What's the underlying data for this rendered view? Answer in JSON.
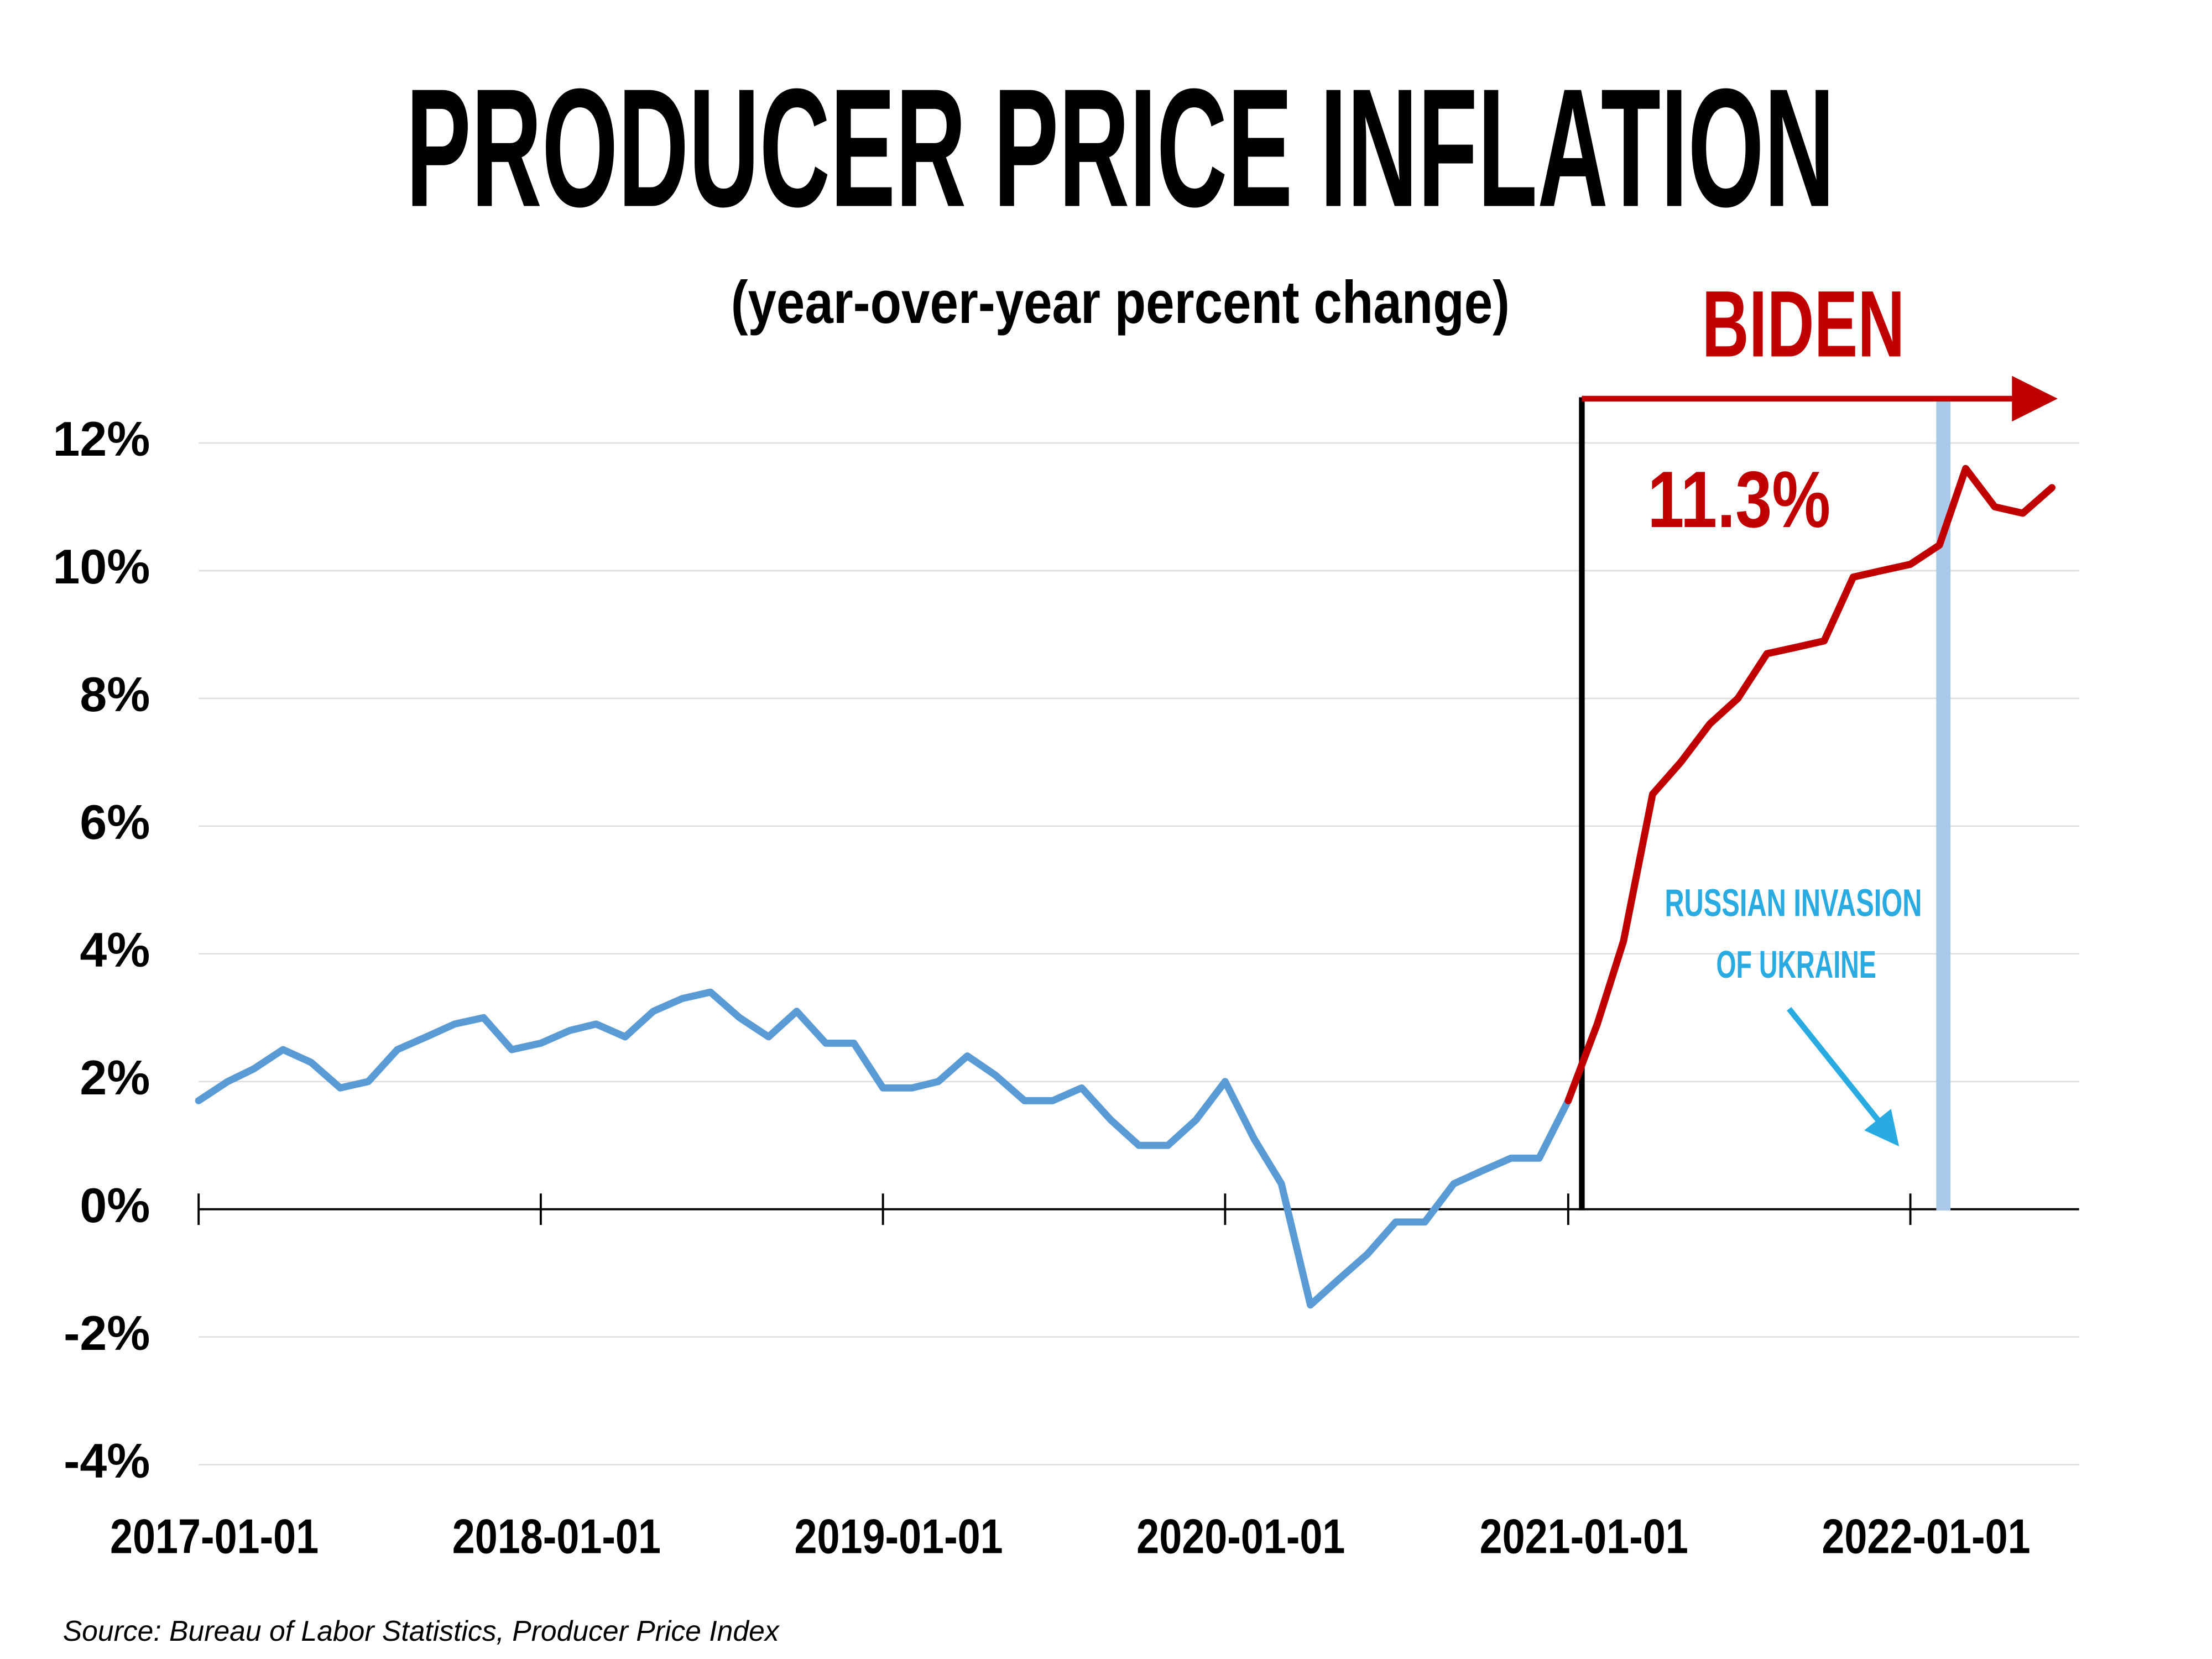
{
  "chart_data": {
    "type": "line",
    "title": "PRODUCER PRICE INFLATION",
    "subtitle": "(year-over-year percent change)",
    "annotations": {
      "president": "BIDEN",
      "latest": "11.3%",
      "event": [
        "RUSSIAN INVASION",
        "OF UKRAINE"
      ]
    },
    "source": "Source: Bureau of Labor Statistics, Producer Price Index",
    "x": [
      "2017-01-01",
      "2017-02-01",
      "2017-03-01",
      "2017-04-01",
      "2017-05-01",
      "2017-06-01",
      "2017-07-01",
      "2017-08-01",
      "2017-09-01",
      "2017-10-01",
      "2017-11-01",
      "2017-12-01",
      "2018-01-01",
      "2018-02-01",
      "2018-03-01",
      "2018-04-01",
      "2018-05-01",
      "2018-06-01",
      "2018-07-01",
      "2018-08-01",
      "2018-09-01",
      "2018-10-01",
      "2018-11-01",
      "2018-12-01",
      "2019-01-01",
      "2019-02-01",
      "2019-03-01",
      "2019-04-01",
      "2019-05-01",
      "2019-06-01",
      "2019-07-01",
      "2019-08-01",
      "2019-09-01",
      "2019-10-01",
      "2019-11-01",
      "2019-12-01",
      "2020-01-01",
      "2020-02-01",
      "2020-03-01",
      "2020-04-01",
      "2020-05-01",
      "2020-06-01",
      "2020-07-01",
      "2020-08-01",
      "2020-09-01",
      "2020-10-01",
      "2020-11-01",
      "2020-12-01",
      "2021-01-01",
      "2021-02-01",
      "2021-03-01",
      "2021-04-01",
      "2021-05-01",
      "2021-06-01",
      "2021-07-01",
      "2021-08-01",
      "2021-09-01",
      "2021-10-01",
      "2021-11-01",
      "2021-12-01",
      "2022-01-01",
      "2022-02-01",
      "2022-03-01",
      "2022-04-01",
      "2022-05-01",
      "2022-06-01"
    ],
    "series": [
      {
        "color": "#5b9bd5",
        "values": [
          1.7,
          2.0,
          2.2,
          2.5,
          2.3,
          1.9,
          2.0,
          2.5,
          2.7,
          2.9,
          3.0,
          2.5,
          2.6,
          2.8,
          2.9,
          2.7,
          3.1,
          3.3,
          3.4,
          3.0,
          2.7,
          3.1,
          2.6,
          2.6,
          1.9,
          1.9,
          2.0,
          2.4,
          2.1,
          1.7,
          1.7,
          1.9,
          1.4,
          1.0,
          1.0,
          1.4,
          2.0,
          1.1,
          0.4,
          -1.5,
          -1.1,
          -0.7,
          -0.2,
          -0.2,
          0.4,
          0.6,
          0.8,
          0.8,
          1.7,
          null,
          null,
          null,
          null,
          null,
          null,
          null,
          null,
          null,
          null,
          null,
          null,
          null,
          null,
          null,
          null,
          null
        ]
      },
      {
        "color": "#c00000",
        "values": [
          null,
          null,
          null,
          null,
          null,
          null,
          null,
          null,
          null,
          null,
          null,
          null,
          null,
          null,
          null,
          null,
          null,
          null,
          null,
          null,
          null,
          null,
          null,
          null,
          null,
          null,
          null,
          null,
          null,
          null,
          null,
          null,
          null,
          null,
          null,
          null,
          null,
          null,
          null,
          null,
          null,
          null,
          null,
          null,
          null,
          null,
          null,
          null,
          1.7,
          2.9,
          4.2,
          6.5,
          7.0,
          7.6,
          8.0,
          8.7,
          8.8,
          8.9,
          9.9,
          10.0,
          10.1,
          10.4,
          11.6,
          11.0,
          10.9,
          11.3
        ]
      }
    ],
    "xlim": [
      "2017-01-01",
      "2022-06-30"
    ],
    "xticks": [
      "2017-01-01",
      "2018-01-01",
      "2019-01-01",
      "2020-01-01",
      "2021-01-01",
      "2022-01-01"
    ],
    "ylim": [
      -4,
      12
    ],
    "yticks": [
      {
        "value": -4,
        "label": "-4%"
      },
      {
        "value": -2,
        "label": "-2%"
      },
      {
        "value": 0,
        "label": "0%"
      },
      {
        "value": 2,
        "label": "2%"
      },
      {
        "value": 4,
        "label": "4%"
      },
      {
        "value": 6,
        "label": "6%"
      },
      {
        "value": 8,
        "label": "8%"
      },
      {
        "value": 10,
        "label": "10%"
      },
      {
        "value": 12,
        "label": "12%"
      }
    ],
    "grid": true
  }
}
